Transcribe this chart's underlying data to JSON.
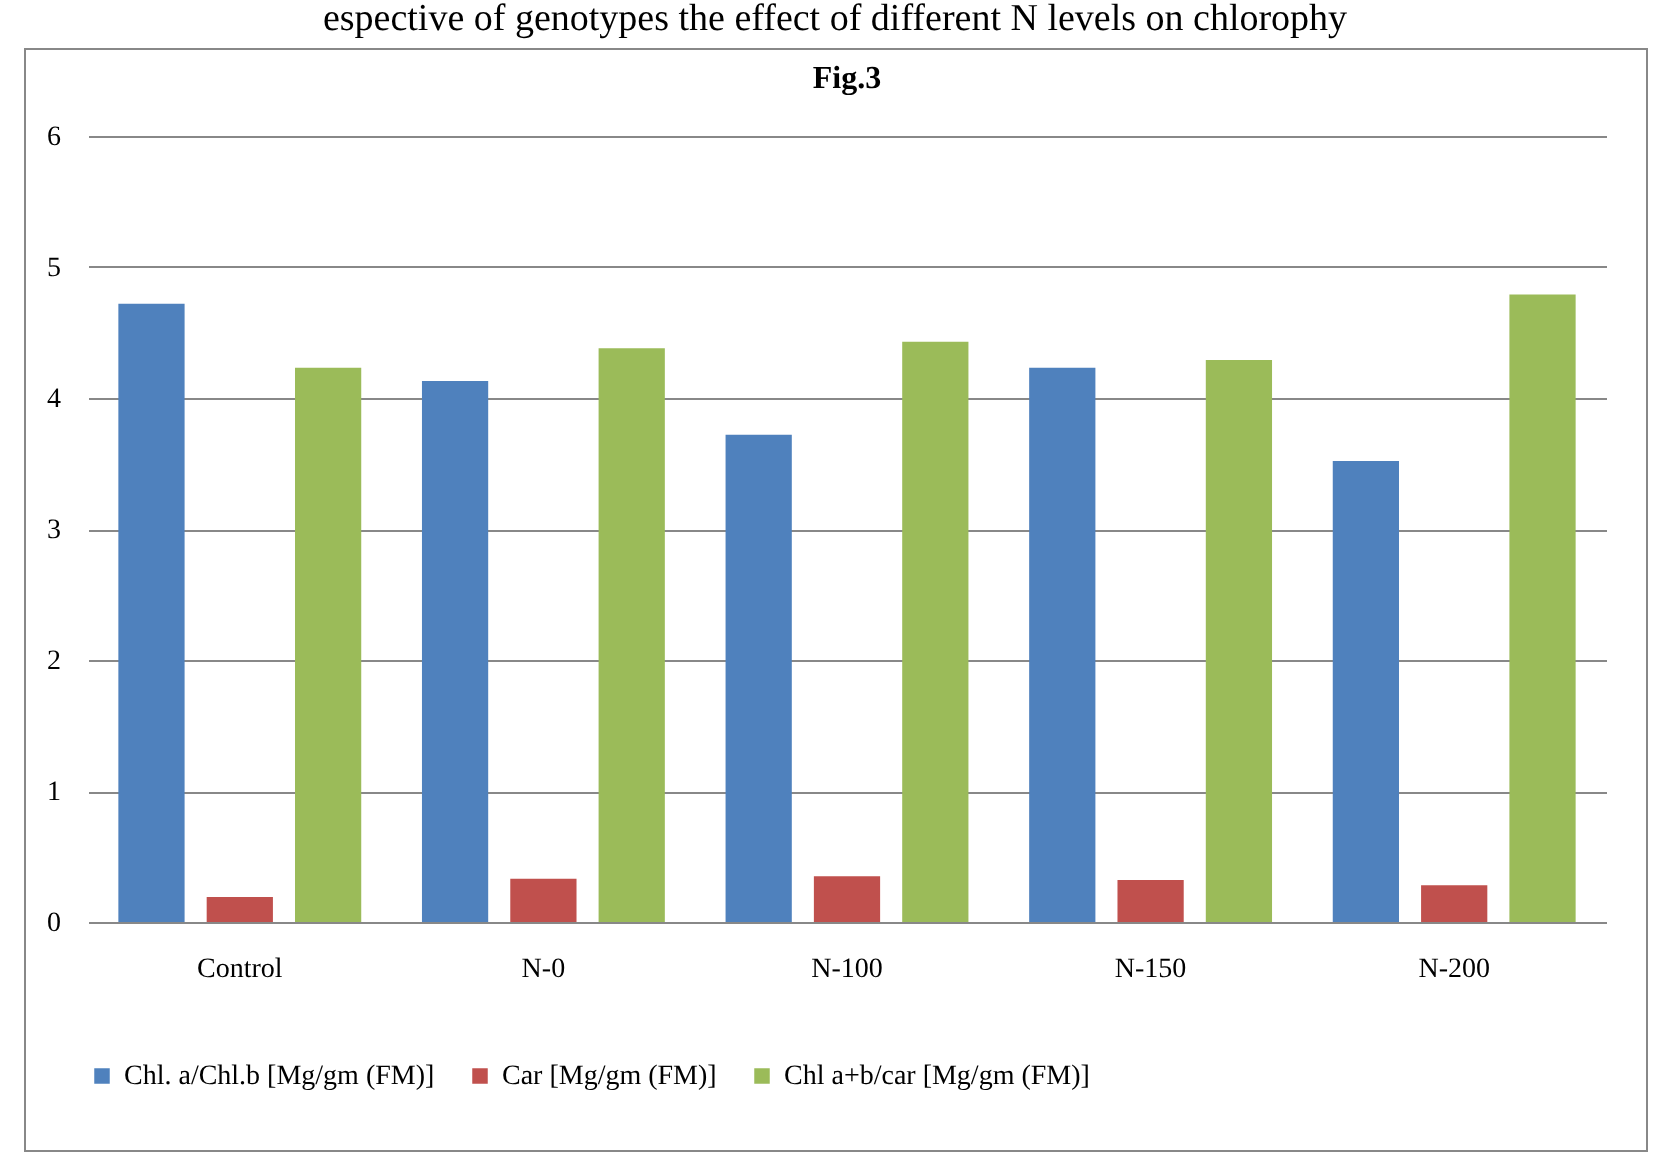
{
  "chart_data": {
    "type": "bar",
    "title": "Fig.3",
    "annotations": [
      "espective of genotypes the effect of different N levels on chlorophy"
    ],
    "categories": [
      "Control",
      "N-0",
      "N-100",
      "N-150",
      "N-200"
    ],
    "series": [
      {
        "name": "Chl. a/Chl.b [Mg/gm  (FM)]",
        "color": "#4f81bd",
        "values": [
          4.72,
          4.13,
          3.72,
          4.23,
          3.52
        ]
      },
      {
        "name": "Car [Mg/gm  (FM)]",
        "color": "#c0504d",
        "values": [
          0.19,
          0.33,
          0.35,
          0.32,
          0.28
        ]
      },
      {
        "name": "Chl a+b/car [Mg/gm (FM)]",
        "color": "#9bbb59",
        "values": [
          4.23,
          4.38,
          4.43,
          4.29,
          4.79
        ]
      }
    ],
    "ylim": [
      0,
      6
    ],
    "yticks": [
      0,
      1,
      2,
      3,
      4,
      5,
      6
    ],
    "grid": "y",
    "legend": "bottom"
  }
}
